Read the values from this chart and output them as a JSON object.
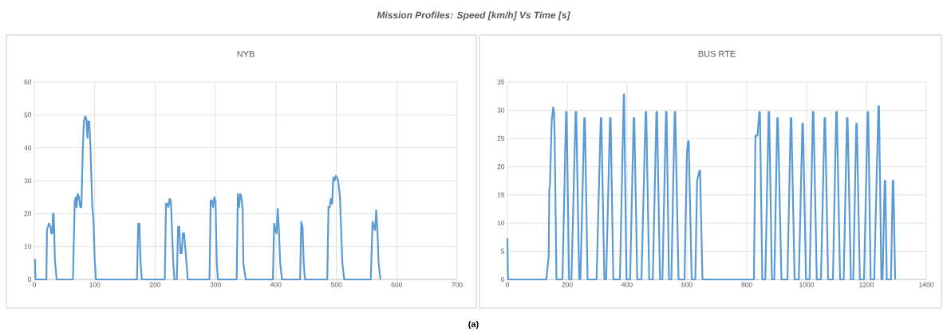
{
  "chart_data": [
    {
      "type": "line",
      "title": "NYB",
      "annotations": [
        "Mission Profiles: Speed [km/h] Vs Time [s]"
      ],
      "color": "#5b9bd5",
      "grid": true,
      "x": [
        0,
        1,
        2,
        20,
        21,
        24,
        27,
        28,
        30,
        31,
        32,
        33,
        34,
        37,
        64,
        67,
        69,
        70,
        72,
        74,
        76,
        78,
        80,
        82,
        84,
        86,
        88,
        89,
        91,
        93,
        96,
        98,
        100,
        102,
        170,
        172,
        174,
        176,
        178,
        216,
        218,
        220,
        222,
        224,
        226,
        228,
        230,
        232,
        236,
        238,
        240,
        242,
        244,
        246,
        248,
        252,
        254,
        290,
        292,
        294,
        296,
        298,
        300,
        302,
        304,
        335,
        337,
        339,
        341,
        343,
        345,
        346,
        350,
        395,
        397,
        399,
        401,
        403,
        405,
        407,
        410,
        440,
        442,
        444,
        446,
        448,
        485,
        487,
        489,
        491,
        493,
        495,
        497,
        499,
        501,
        503,
        506,
        510,
        513,
        557,
        560,
        562,
        564,
        566,
        568,
        570,
        573
      ],
      "values": [
        6,
        6,
        0,
        0,
        15,
        17,
        16,
        14,
        14,
        20,
        20,
        15,
        6,
        0,
        0,
        24,
        25,
        22,
        26,
        25,
        22,
        22,
        38,
        48,
        49.5,
        49,
        43,
        48,
        48,
        40,
        22,
        18,
        6,
        0,
        0,
        17,
        17,
        5,
        0,
        0,
        23,
        23,
        22,
        24.5,
        24,
        15,
        5,
        0,
        0,
        16,
        16,
        8,
        8,
        14,
        14,
        5,
        0,
        0,
        24,
        24,
        22,
        25,
        24,
        5,
        0,
        0,
        26,
        22,
        26,
        25,
        21,
        5,
        0,
        0,
        17,
        15,
        14,
        21.5,
        15,
        5,
        0,
        0,
        17.5,
        16,
        5,
        0,
        0,
        22,
        22,
        24.5,
        23,
        31,
        30,
        31.5,
        31,
        30,
        25,
        5,
        0,
        0,
        17.5,
        16,
        15,
        21,
        15,
        5,
        0
      ],
      "xlim": [
        0,
        700
      ],
      "xticks": [
        0,
        100,
        200,
        300,
        400,
        500,
        600,
        700
      ],
      "ylim": [
        0,
        60
      ],
      "yticks": [
        0,
        10,
        20,
        30,
        40,
        50,
        60
      ]
    },
    {
      "type": "line",
      "title": "BUS RTE",
      "annotations": [
        "(a)"
      ],
      "color": "#5b9bd5",
      "grid": true,
      "x": [
        0,
        2,
        130,
        138,
        140,
        142,
        148,
        153,
        156,
        158,
        164,
        184,
        196,
        198,
        206,
        214,
        228,
        230,
        240,
        244,
        257,
        259,
        268,
        298,
        312,
        314,
        324,
        330,
        343,
        345,
        354,
        376,
        389,
        390,
        398,
        410,
        422,
        424,
        434,
        448,
        462,
        464,
        474,
        486,
        498,
        500,
        510,
        518,
        530,
        532,
        540,
        548,
        559,
        561,
        572,
        592,
        600,
        604,
        606,
        610,
        616,
        628,
        634,
        642,
        644,
        652,
        824,
        829,
        831,
        836,
        842,
        844,
        852,
        862,
        873,
        875,
        884,
        892,
        902,
        904,
        916,
        936,
        947,
        949,
        960,
        974,
        986,
        988,
        998,
        1010,
        1021,
        1023,
        1034,
        1048,
        1060,
        1062,
        1072,
        1088,
        1099,
        1101,
        1112,
        1124,
        1135,
        1137,
        1148,
        1156,
        1166,
        1168,
        1178,
        1192,
        1204,
        1206,
        1214,
        1226,
        1240,
        1242,
        1250,
        1254,
        1261,
        1263,
        1268,
        1282,
        1288,
        1290,
        1296
      ],
      "values": [
        7.3,
        0,
        0,
        4,
        16,
        16.5,
        28,
        30.5,
        29.5,
        25,
        0,
        0,
        29.7,
        29.7,
        0,
        0,
        29.7,
        29.7,
        0,
        0,
        28.6,
        28.6,
        0,
        0,
        28.6,
        28.6,
        0,
        0,
        28.6,
        28.6,
        0,
        0,
        32.8,
        32.8,
        0,
        0,
        28.6,
        28.6,
        0,
        0,
        29.7,
        29.7,
        0,
        0,
        29.7,
        29.7,
        0,
        0,
        29.7,
        29.7,
        0,
        0,
        29.7,
        29.7,
        0,
        0,
        22.5,
        24.5,
        24.5,
        14.5,
        0,
        0,
        17.5,
        19.3,
        19.3,
        0,
        0,
        25.5,
        25.5,
        25.5,
        29.7,
        29.7,
        0,
        0,
        29.7,
        29.7,
        0,
        0,
        28.6,
        28.6,
        0,
        0,
        28.6,
        28.6,
        0,
        0,
        27.6,
        27.6,
        0,
        0,
        29.7,
        29.7,
        0,
        0,
        28.6,
        28.6,
        0,
        0,
        29.7,
        29.7,
        0,
        0,
        28.6,
        28.6,
        0,
        0,
        27.6,
        27.6,
        0,
        0,
        29.7,
        29.7,
        0,
        0,
        30.7,
        30.7,
        0,
        0,
        17.5,
        17.5,
        0,
        0,
        17.5,
        17.5,
        0
      ],
      "xlim": [
        0,
        1400
      ],
      "xticks": [
        0,
        200,
        400,
        600,
        800,
        1000,
        1200,
        1400
      ],
      "ylim": [
        0,
        35
      ],
      "yticks": [
        0,
        5,
        10,
        15,
        20,
        25,
        30,
        35
      ]
    }
  ]
}
